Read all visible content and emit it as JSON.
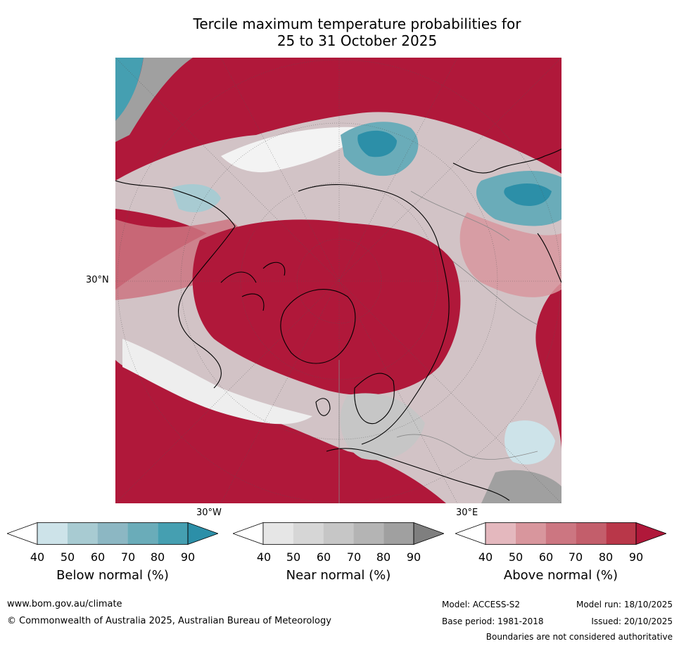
{
  "chart_data": {
    "type": "heatmap",
    "title_line1": "Tercile maximum temperature probabilities for",
    "title_line2": "25 to 31 October 2025",
    "projection": "north-polar-stereographic",
    "lat_labels": [
      "30°N"
    ],
    "lon_labels": [
      "30°W",
      "30°E"
    ],
    "colorbars": [
      {
        "name": "below",
        "label": "Below normal (%)",
        "ticks": [
          "40",
          "50",
          "60",
          "70",
          "80",
          "90"
        ],
        "colors": [
          "#ffffff",
          "#cde3e9",
          "#a8cbd2",
          "#8cb7c3",
          "#6aacb9",
          "#459fb1",
          "#2c8fa8"
        ]
      },
      {
        "name": "near",
        "label": "Near normal (%)",
        "ticks": [
          "40",
          "50",
          "60",
          "70",
          "80",
          "90"
        ],
        "colors": [
          "#ffffff",
          "#e6e6e6",
          "#d6d6d6",
          "#c6c6c6",
          "#b4b4b4",
          "#a0a0a0",
          "#7f7f7f"
        ]
      },
      {
        "name": "above",
        "label": "Above normal (%)",
        "ticks": [
          "40",
          "50",
          "60",
          "70",
          "80",
          "90"
        ],
        "colors": [
          "#ffffff",
          "#e4b8be",
          "#d8969d",
          "#cc7681",
          "#c35e6b",
          "#b93749",
          "#b0183a"
        ]
      }
    ]
  },
  "footer": {
    "url": "www.bom.gov.au/climate",
    "copyright": "© Commonwealth of Australia 2025, Australian Bureau of Meteorology",
    "model": "Model: ACCESS-S2",
    "base_period": "Base period: 1981-2018",
    "model_run": "Model run: 18/10/2025",
    "issued": "Issued: 20/10/2025",
    "disclaimer": "Boundaries are not considered authoritative"
  }
}
